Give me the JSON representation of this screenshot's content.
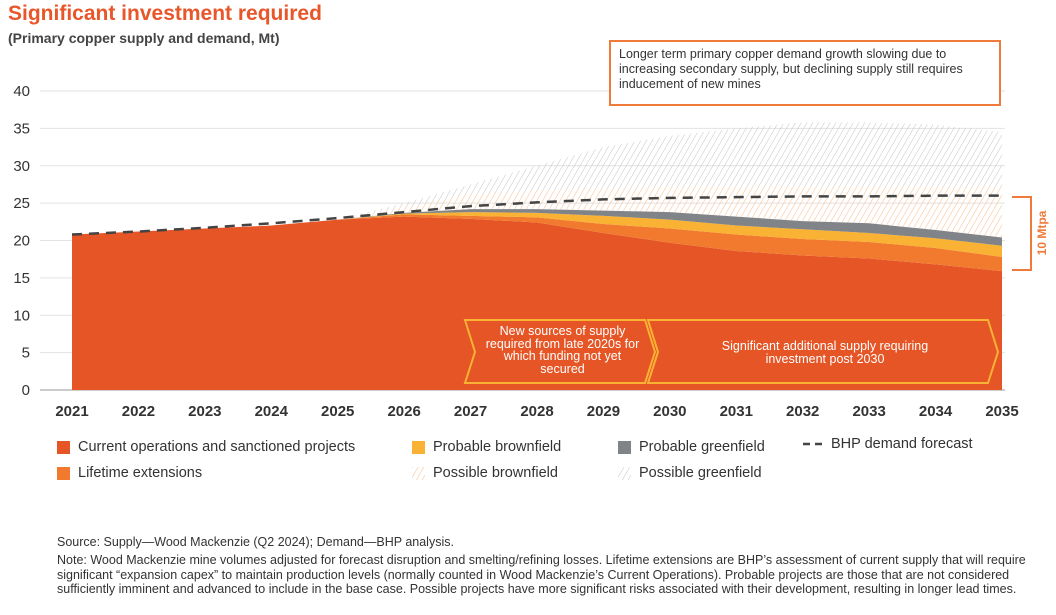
{
  "title": "Significant investment required",
  "subtitle": "(Primary copper supply and demand, Mt)",
  "annotation": "Longer term primary copper demand growth slowing due to increasing secondary supply, but declining supply still requires inducement of new mines",
  "arrow1": "New sources of supply required from late 2020s for which funding not yet secured",
  "arrow2": "Significant additional supply requiring investment post 2030",
  "bracket_label": "10 Mtpa",
  "source": "Source: Supply—Wood Mackenzie (Q2 2024); Demand—BHP analysis.",
  "note": "Note: Wood Mackenzie mine volumes adjusted for forecast disruption and smelting/refining losses. Lifetime extensions are BHP’s assessment of current supply that will require significant “expansion capex” to maintain production levels (normally counted in Wood Mackenzie’s Current Operations). Probable projects are those that are not considered sufficiently imminent and advanced to include in the base case. Possible projects have more significant risks associated with their development, resulting in longer lead times.",
  "chart_data": {
    "type": "area",
    "stacked": true,
    "ylim": [
      0,
      40
    ],
    "yticks": [
      0,
      5,
      10,
      15,
      20,
      25,
      30,
      35,
      40
    ],
    "grid": true,
    "legend_position": "bottom",
    "categories": [
      "2021",
      "2022",
      "2023",
      "2024",
      "2025",
      "2026",
      "2027",
      "2028",
      "2029",
      "2030",
      "2031",
      "2032",
      "2033",
      "2034",
      "2035"
    ],
    "series": [
      {
        "name": "Current operations and sanctioned projects",
        "color": "#e55525",
        "style": "solid",
        "values": [
          20.8,
          21.2,
          21.6,
          22.0,
          22.8,
          23.2,
          22.9,
          22.4,
          21.0,
          19.7,
          18.6,
          18.0,
          17.6,
          16.8,
          15.9
        ]
      },
      {
        "name": "Lifetime extensions",
        "color": "#f27a2e",
        "style": "solid",
        "values": [
          0,
          0,
          0,
          0,
          0,
          0.3,
          0.4,
          0.7,
          1.2,
          1.9,
          2.2,
          2.2,
          2.2,
          2.2,
          1.9
        ]
      },
      {
        "name": "Probable brownfield",
        "color": "#f9b233",
        "style": "solid",
        "values": [
          0,
          0,
          0,
          0,
          0,
          0.1,
          0.5,
          0.6,
          1.1,
          1.2,
          1.2,
          1.3,
          1.2,
          1.3,
          1.5
        ]
      },
      {
        "name": "Probable greenfield",
        "color": "#808488",
        "style": "solid",
        "values": [
          0,
          0,
          0,
          0,
          0,
          0.1,
          0.4,
          0.5,
          0.7,
          1.0,
          1.2,
          1.1,
          1.3,
          1.1,
          1.1
        ]
      },
      {
        "name": "Possible brownfield",
        "color": "#f7c9a0",
        "style": "hatched",
        "values": [
          0,
          0,
          0,
          0,
          0,
          0.8,
          2.0,
          2.5,
          3.0,
          3.4,
          4.0,
          4.6,
          4.9,
          5.8,
          6.8
        ]
      },
      {
        "name": "Possible greenfield",
        "color": "#c8c8c8",
        "style": "hatched",
        "values": [
          0,
          0,
          0,
          0,
          0,
          0.5,
          1.3,
          3.3,
          5.5,
          6.8,
          7.8,
          8.6,
          8.6,
          8.3,
          7.3
        ]
      }
    ],
    "lines": [
      {
        "name": "BHP demand forecast",
        "color": "#444444",
        "style": "dashed",
        "values": [
          20.8,
          21.2,
          21.7,
          22.3,
          23.0,
          23.8,
          24.6,
          25.1,
          25.5,
          25.7,
          25.8,
          25.9,
          25.9,
          26.0,
          26.0
        ]
      }
    ]
  }
}
